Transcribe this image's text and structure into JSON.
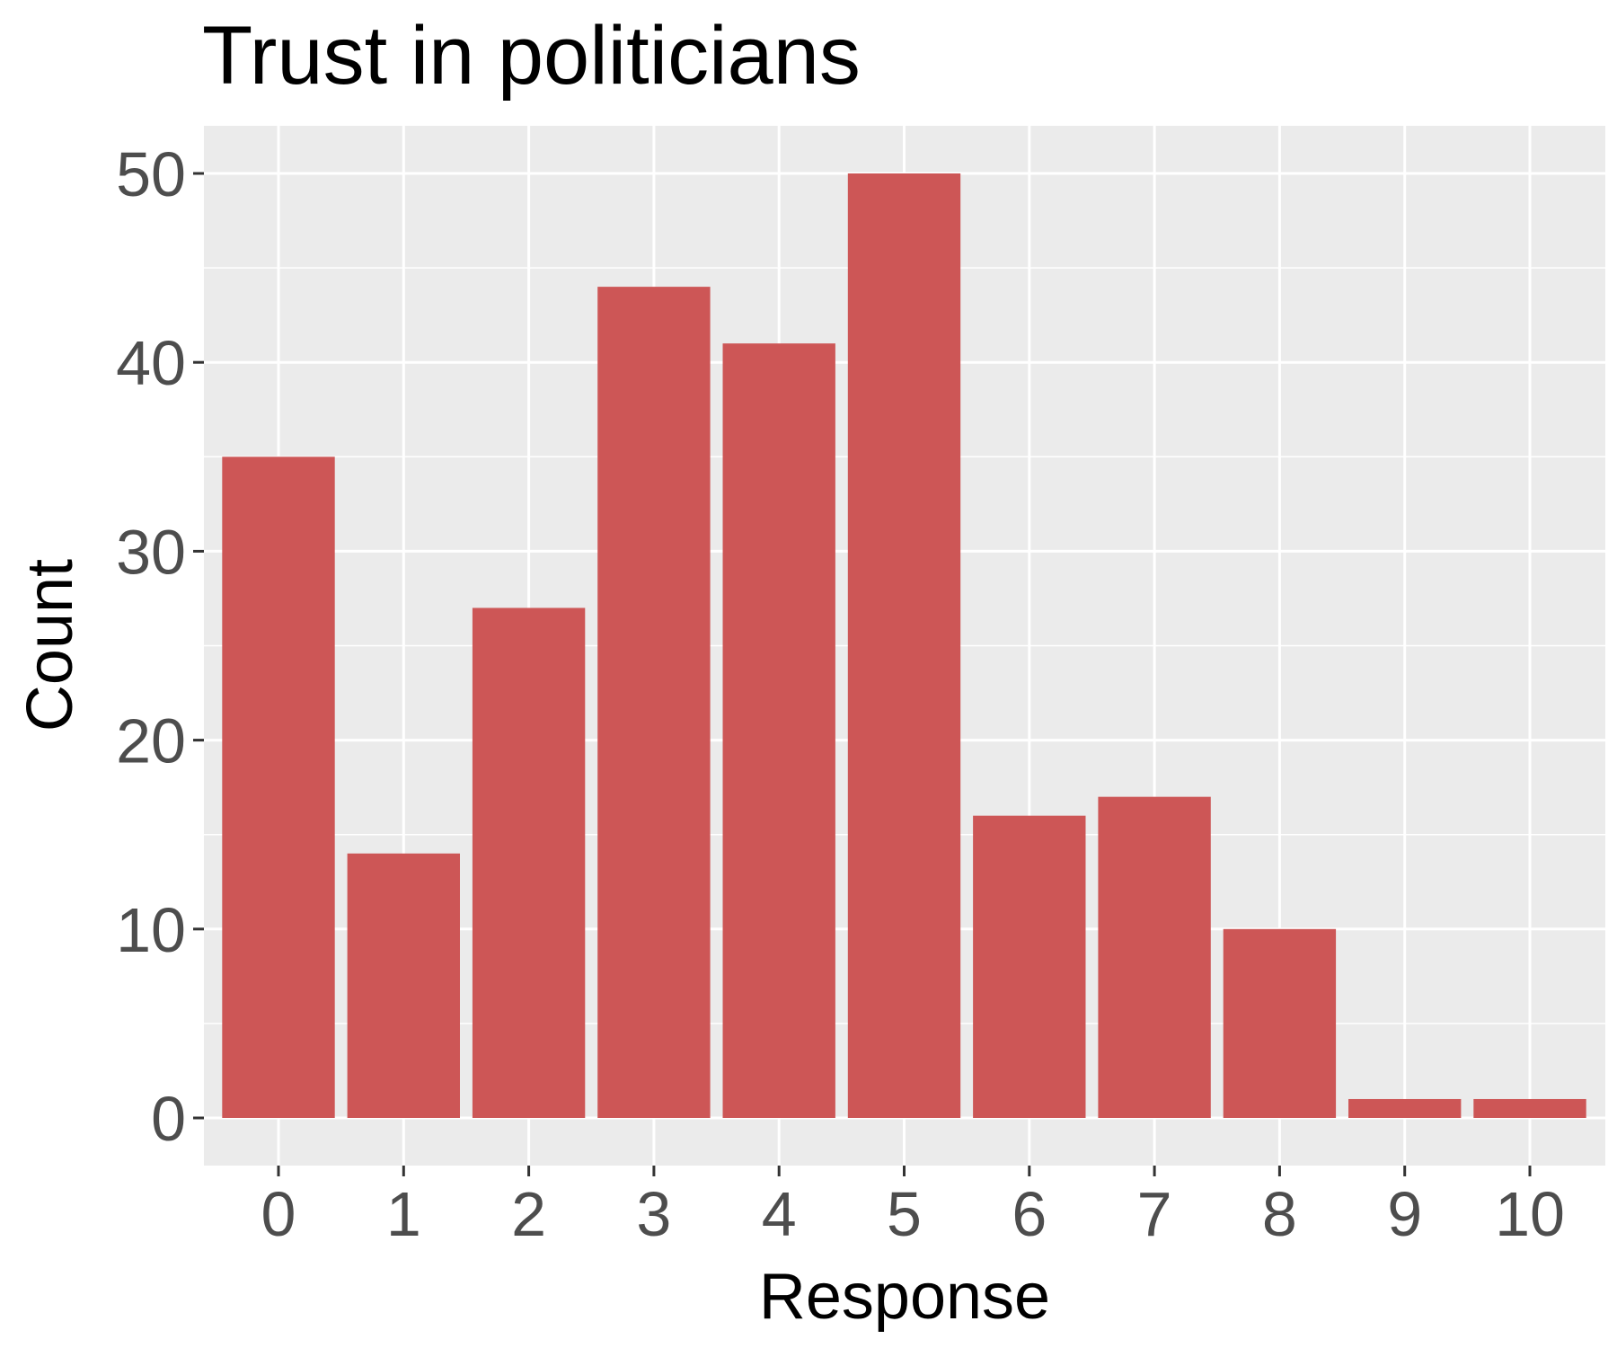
{
  "chart_data": {
    "type": "bar",
    "title": "Trust in politicians",
    "xlabel": "Response",
    "ylabel": "Count",
    "categories": [
      "0",
      "1",
      "2",
      "3",
      "4",
      "5",
      "6",
      "7",
      "8",
      "9",
      "10"
    ],
    "values": [
      35,
      14,
      27,
      44,
      41,
      50,
      16,
      17,
      10,
      1,
      1
    ],
    "ylim": [
      0,
      52.5
    ],
    "yticks": [
      0,
      10,
      20,
      30,
      40,
      50
    ],
    "grid": true,
    "legend": "none",
    "colors": {
      "bar": "#cd5656",
      "panel": "#ebebeb",
      "grid": "#ffffff",
      "tick": "#333333"
    }
  }
}
